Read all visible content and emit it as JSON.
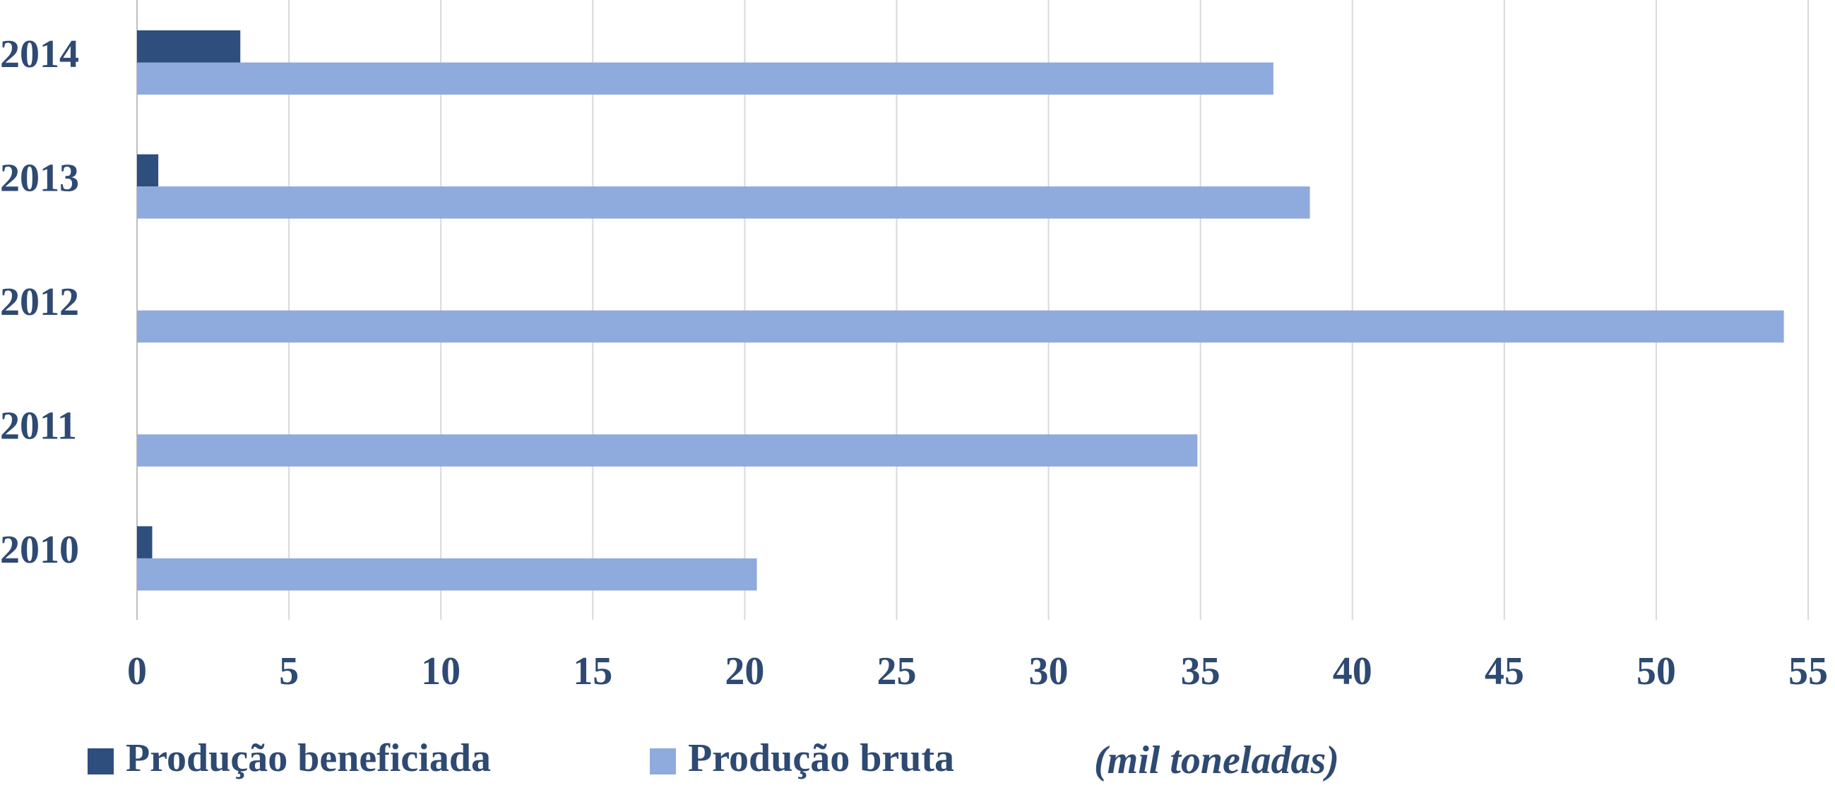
{
  "chart_data": {
    "type": "barh",
    "categories": [
      "2014",
      "2013",
      "2012",
      "2011",
      "2010"
    ],
    "series": [
      {
        "name": "Produção beneficiada",
        "color": "#2e4e7e",
        "values": [
          3.4,
          0.7,
          null,
          null,
          0.5
        ]
      },
      {
        "name": "Produção bruta",
        "color": "#8faadc",
        "values": [
          37.4,
          38.6,
          54.2,
          34.9,
          20.4
        ]
      }
    ],
    "xlim": [
      0,
      55
    ],
    "xticks": [
      0,
      5,
      10,
      15,
      20,
      25,
      30,
      35,
      40,
      45,
      50,
      55
    ],
    "grid": true,
    "legend": "bottom",
    "annotation": "(mil toneladas)"
  }
}
